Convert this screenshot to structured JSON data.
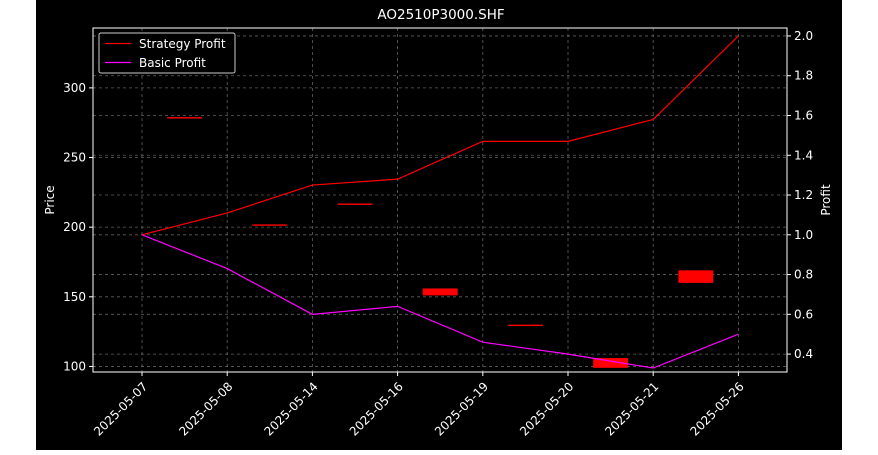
{
  "chart_data": {
    "type": "line",
    "title": "AO2510P3000.SHF",
    "xlabel": "",
    "ylabel": "Price",
    "y2label": "Profit",
    "categories": [
      "2025-05-07",
      "2025-05-08",
      "2025-05-14",
      "2025-05-16",
      "2025-05-19",
      "2025-05-20",
      "2025-05-21",
      "2025-05-26"
    ],
    "ylim": [
      96,
      343
    ],
    "y2lim": [
      0.31,
      2.04
    ],
    "yticks": [
      100,
      150,
      200,
      250,
      300
    ],
    "y2ticks": [
      0.4,
      0.6,
      0.8,
      1.0,
      1.2,
      1.4,
      1.6,
      1.8,
      2.0
    ],
    "grid": true,
    "legend_position": "top-left",
    "series": [
      {
        "name": "Strategy Profit",
        "axis": "right",
        "color": "#ff0000",
        "values": [
          1.0,
          1.11,
          1.25,
          1.28,
          1.47,
          1.47,
          1.58,
          2.0
        ]
      },
      {
        "name": "Basic Profit",
        "axis": "right",
        "color": "#ff00ff",
        "values": [
          1.0,
          0.83,
          0.6,
          0.64,
          0.46,
          0.4,
          0.33,
          0.5
        ]
      }
    ],
    "candles": {
      "axis": "left",
      "color": "#ff0000",
      "ohlc": [
        {
          "open": 279,
          "close": 279
        },
        {
          "open": 202,
          "close": 202
        },
        {
          "open": 217,
          "close": 217
        },
        {
          "open": 156,
          "close": 151
        },
        {
          "open": 130,
          "close": 130
        },
        {
          "open": 106,
          "close": 99
        },
        {
          "open": 169,
          "close": 160
        }
      ],
      "positions": [
        0.5,
        1.5,
        2.5,
        3.5,
        4.5,
        5.5,
        6.5
      ]
    }
  }
}
